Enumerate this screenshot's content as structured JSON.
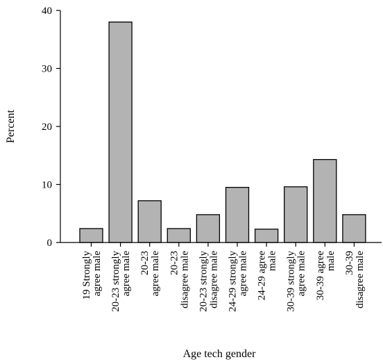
{
  "chart_data": {
    "type": "bar",
    "title": "",
    "xlabel": "Age tech gender",
    "ylabel": "Percent",
    "ylim": [
      0,
      40
    ],
    "yticks": [
      0,
      10,
      20,
      30,
      40
    ],
    "grid": false,
    "bar_color": "#b3b3b3",
    "categories": [
      [
        "19 Strongly",
        "agree male"
      ],
      [
        "20-23 strongly",
        "agree male"
      ],
      [
        "20-23",
        "agree male"
      ],
      [
        "20-23",
        "disagree male"
      ],
      [
        "20-23 strongly",
        "disagree male"
      ],
      [
        "24-29 strongly",
        "agree male"
      ],
      [
        "24-29 agree",
        "male"
      ],
      [
        "30-39 strongly",
        "agree male"
      ],
      [
        "30-39 agree",
        "male"
      ],
      [
        "30-39",
        "disagree male"
      ]
    ],
    "values": [
      2.4,
      38.0,
      7.2,
      2.4,
      4.8,
      9.5,
      2.3,
      9.6,
      14.3,
      4.8
    ]
  }
}
